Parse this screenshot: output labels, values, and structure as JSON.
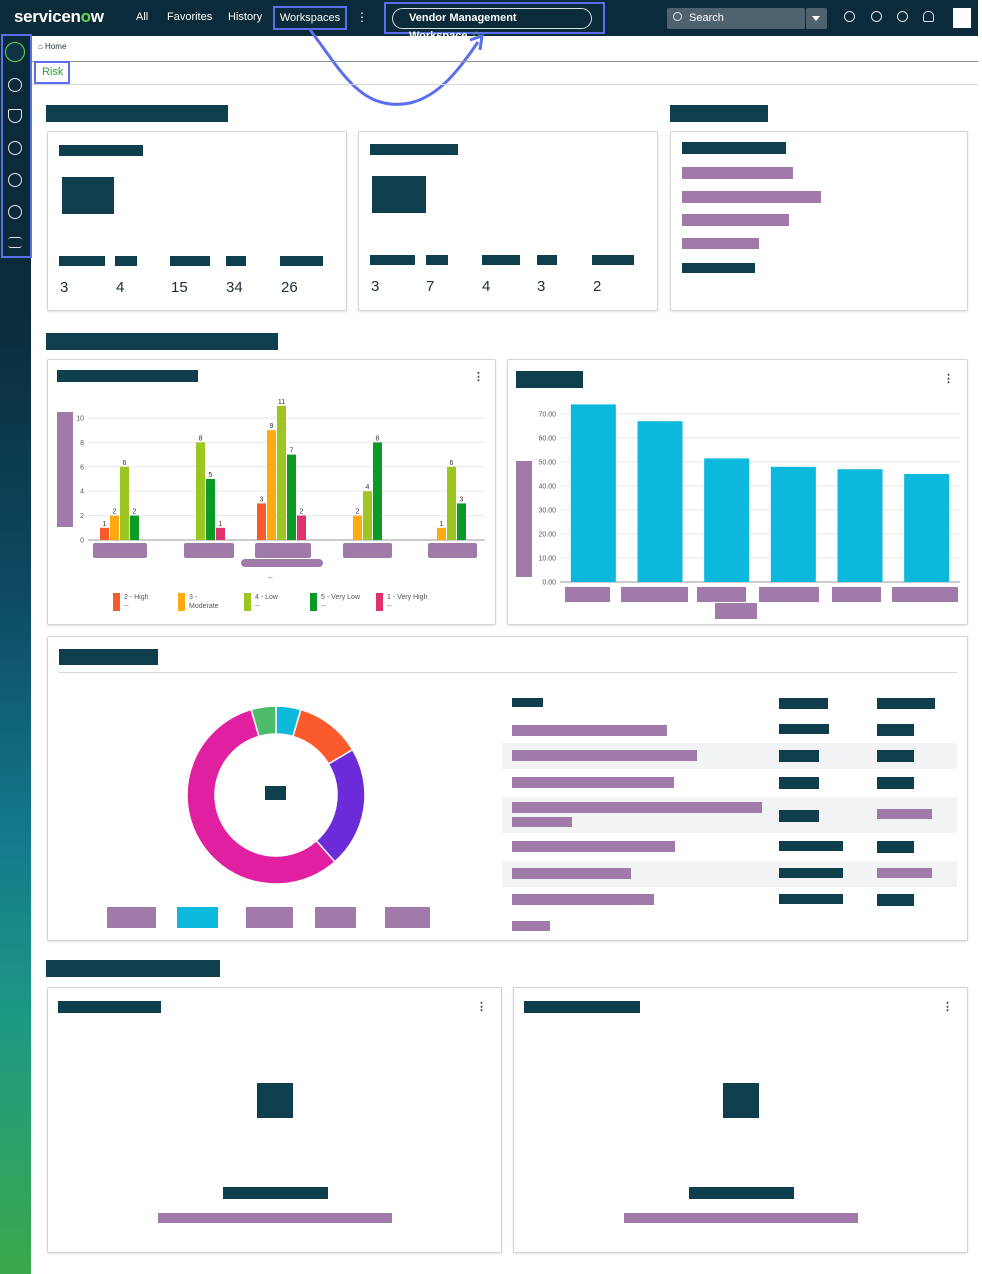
{
  "header": {
    "logo_prefix": "servicen",
    "logo_o": "o",
    "logo_suffix": "w",
    "nav": [
      "All",
      "Favorites",
      "History"
    ],
    "workspaces_label": "Workspaces",
    "more": "⋮",
    "workspace_pill": "Vendor Management Workspace",
    "star": "☆",
    "search_placeholder": "Search"
  },
  "breadcrumb": {
    "home": "⌂ Home",
    "tab": "Risk"
  },
  "summary_cards": [
    {
      "values": [
        "3",
        "4",
        "15",
        "34",
        "26"
      ]
    },
    {
      "values": [
        "3",
        "7",
        "4",
        "3",
        "2"
      ]
    }
  ],
  "bar_chart_left": {
    "menu": "⋮",
    "dash": "--",
    "chart_data": {
      "type": "bar",
      "ylim": [
        0,
        10
      ],
      "y_ticks": [
        "0",
        "2",
        "4",
        "6",
        "8",
        "10"
      ],
      "groups": 5,
      "series": [
        {
          "name": "2 - High",
          "sub": "--",
          "color": "#fb5a2d",
          "values": [
            1,
            null,
            3,
            null,
            null
          ]
        },
        {
          "name": "3 -",
          "sub": "Moderate",
          "color": "#ffab10",
          "values": [
            2,
            null,
            9,
            2,
            1
          ]
        },
        {
          "name": "4 - Low",
          "sub": "--",
          "color": "#9dc623",
          "values": [
            6,
            8,
            11,
            4,
            6
          ]
        },
        {
          "name": "5 - Very Low",
          "sub": "--",
          "color": "#0b9a25",
          "values": [
            2,
            5,
            7,
            8,
            3
          ]
        },
        {
          "name": "1 - Very High",
          "sub": "--",
          "color": "#e0306e",
          "values": [
            null,
            1,
            2,
            null,
            null
          ]
        }
      ]
    }
  },
  "bar_chart_right": {
    "menu": "⋮",
    "chart_data": {
      "type": "bar",
      "ylim": [
        0,
        75
      ],
      "y_ticks": [
        "0.00",
        "10.00",
        "20.00",
        "30.00",
        "40.00",
        "50.00",
        "60.00",
        "70.00"
      ],
      "values": [
        74,
        67,
        51.5,
        48,
        47,
        45
      ],
      "color": "#0cb8dc"
    }
  },
  "donut": {
    "chart_data": {
      "type": "pie",
      "slices": [
        {
          "value": 4.5,
          "color": "#0cb8dc"
        },
        {
          "value": 12,
          "color": "#fb5a2d"
        },
        {
          "value": 22,
          "color": "#6b2bd9"
        },
        {
          "value": 57,
          "color": "#e020a0"
        },
        {
          "value": 4.5,
          "color": "#4dbb6a"
        }
      ],
      "legend_colors": [
        "#a07aa9",
        "#0cb8dc",
        "#a07aa9",
        "#a07aa9",
        "#a07aa9"
      ]
    }
  },
  "bottom_cards": [
    {
      "menu": "⋮"
    },
    {
      "menu": "⋮"
    }
  ]
}
